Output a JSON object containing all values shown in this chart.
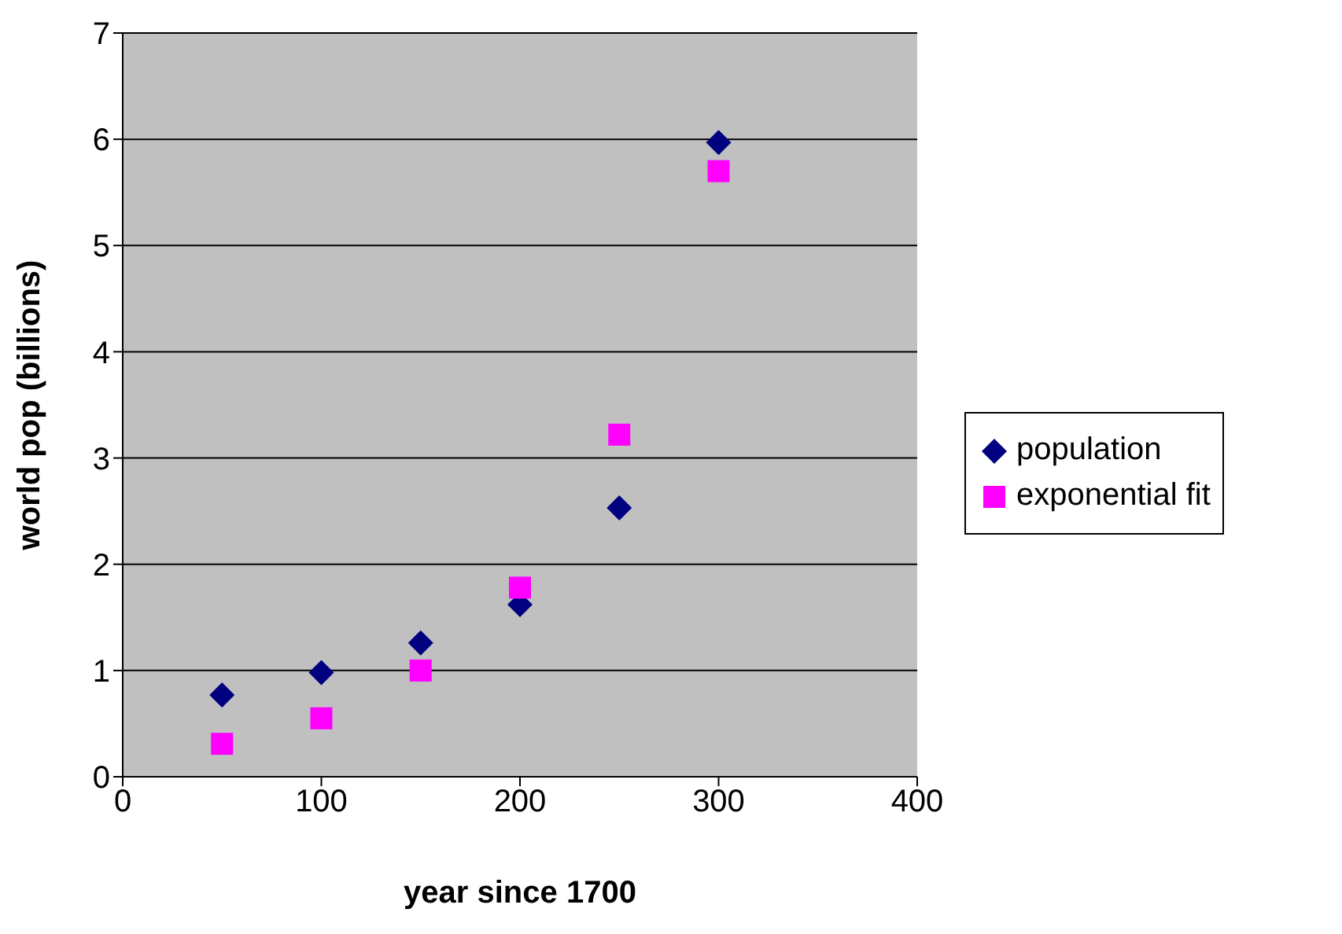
{
  "chart_data": {
    "type": "scatter",
    "xlabel": "year since 1700",
    "ylabel": "world pop (billions)",
    "xlim": [
      0,
      400
    ],
    "xticks": [
      0,
      100,
      200,
      300,
      400
    ],
    "ylim": [
      0,
      7
    ],
    "yticks": [
      0,
      1,
      2,
      3,
      4,
      5,
      6,
      7
    ],
    "grid": "y",
    "legend": "right",
    "series": [
      {
        "name": "population",
        "color": "#000080",
        "marker": "diamond",
        "x": [
          50,
          100,
          150,
          200,
          250,
          300
        ],
        "values": [
          0.77,
          0.98,
          1.26,
          1.62,
          2.53,
          5.97
        ]
      },
      {
        "name": "exponential fit",
        "color": "#ff00ff",
        "marker": "square",
        "x": [
          50,
          100,
          150,
          200,
          250,
          300
        ],
        "values": [
          0.31,
          0.55,
          1.0,
          1.78,
          3.22,
          5.7
        ]
      }
    ]
  }
}
